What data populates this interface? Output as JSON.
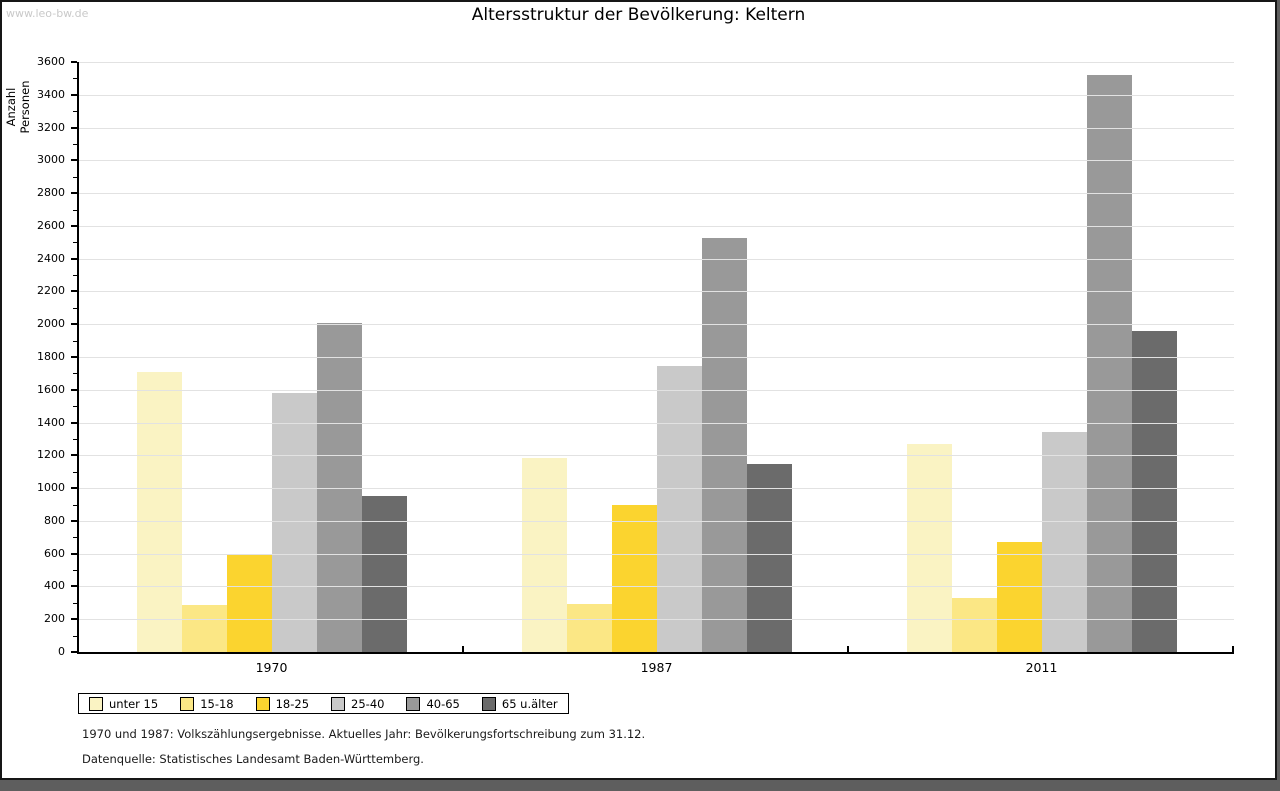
{
  "window": {
    "watermark": "www.leo-bw.de"
  },
  "title": "Altersstruktur der Bevölkerung: Keltern",
  "footnotes": [
    "1970 und 1987: Volkszählungsergebnisse. Aktuelles Jahr: Bevölkerungsfortschreibung zum 31.12.",
    "Datenquelle: Statistisches Landesamt Baden-Württemberg."
  ],
  "chart_data": {
    "type": "bar",
    "title": "Altersstruktur der Bevölkerung: Keltern",
    "xlabel": "",
    "ylabel": "Anzahl Personen",
    "ylim": [
      0,
      3600
    ],
    "ytick_step": 200,
    "grid": true,
    "legend_position": "bottom",
    "categories": [
      "1970",
      "1987",
      "2011"
    ],
    "series": [
      {
        "name": "unter 15",
        "color": "#FAF3C3",
        "values": [
          1710,
          1185,
          1270
        ]
      },
      {
        "name": "15-18",
        "color": "#FBE785",
        "values": [
          290,
          295,
          330
        ]
      },
      {
        "name": "18-25",
        "color": "#FBD42F",
        "values": [
          600,
          900,
          670
        ]
      },
      {
        "name": "25-40",
        "color": "#C9C9C9",
        "values": [
          1580,
          1745,
          1340
        ]
      },
      {
        "name": "40-65",
        "color": "#999999",
        "values": [
          2010,
          2525,
          3520
        ]
      },
      {
        "name": "65 u.älter",
        "color": "#6B6B6B",
        "values": [
          950,
          1145,
          1960
        ]
      }
    ],
    "gridline_color": "#E2E2E2"
  }
}
